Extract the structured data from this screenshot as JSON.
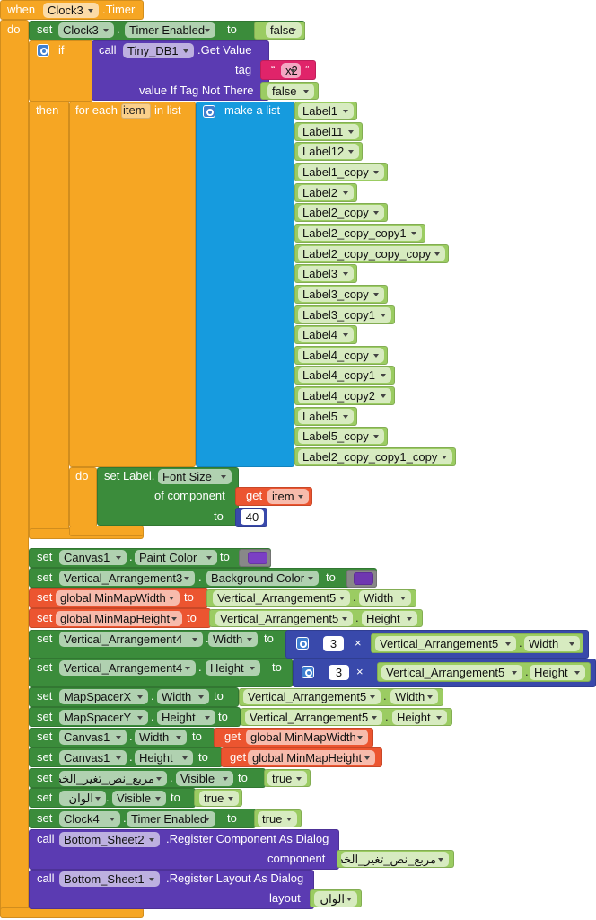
{
  "rows": [
    [
      "when",
      "Clock3",
      ".Timer"
    ],
    [
      "do",
      "set",
      "Clock3",
      ".",
      "Timer Enabled",
      "to",
      "false"
    ],
    [
      "if",
      "call",
      "Tiny_DB1",
      ".Get Value"
    ],
    [
      "tag",
      "“",
      "x2",
      "”"
    ],
    [
      "value If Tag Not There",
      "false"
    ],
    [
      "then",
      "for each",
      "item",
      "in list",
      "make a list",
      "Label1"
    ],
    [
      "Label11"
    ],
    [
      "Label12"
    ],
    [
      "Label1_copy"
    ],
    [
      "Label2"
    ],
    [
      "Label2_copy"
    ],
    [
      "Label2_copy_copy1"
    ],
    [
      "Label2_copy_copy_copy"
    ],
    [
      "Label3"
    ],
    [
      "Label3_copy"
    ],
    [
      "Label3_copy1"
    ],
    [
      "Label4"
    ],
    [
      "Label4_copy"
    ],
    [
      "Label4_copy1"
    ],
    [
      "Label4_copy2"
    ],
    [
      "Label5"
    ],
    [
      "Label5_copy"
    ],
    [
      "Label2_copy_copy1_copy"
    ],
    [
      "do",
      "set Label.",
      "Font Size"
    ],
    [
      "of component",
      "get",
      "item"
    ],
    [
      "to",
      "40"
    ],
    [
      "set",
      "Canvas1",
      ".",
      "Paint Color",
      "to"
    ],
    [
      "set",
      "Vertical_Arrangement3",
      ".",
      "Background Color",
      "to"
    ],
    [
      "set",
      "global MinMapWidth",
      "to",
      "Vertical_Arrangement5",
      ".",
      "Width"
    ],
    [
      "set",
      "global MinMapHeight",
      "to",
      "Vertical_Arrangement5",
      ".",
      "Height"
    ],
    [
      "set",
      "Vertical_Arrangement4",
      ".",
      "Width",
      "to",
      "3",
      "×",
      "Vertical_Arrangement5",
      ".",
      "Width"
    ],
    [
      "set",
      "Vertical_Arrangement4",
      ".",
      "Height",
      "to",
      "3",
      "×",
      "Vertical_Arrangement5",
      ".",
      "Height"
    ],
    [
      "set",
      "MapSpacerX",
      ".",
      "Width",
      "to",
      "Vertical_Arrangement5",
      ".",
      "Width"
    ],
    [
      "set",
      "MapSpacerY",
      ".",
      "Height",
      "to",
      "Vertical_Arrangement5",
      ".",
      "Height"
    ],
    [
      "set",
      "Canvas1",
      ".",
      "Width",
      "to",
      "get",
      "global MinMapWidth"
    ],
    [
      "set",
      "Canvas1",
      ".",
      "Height",
      "to",
      "get",
      "global MinMapHeight"
    ],
    [
      "set",
      "مربع_نص_تغير_الخط",
      ".",
      "Visible",
      "to",
      "true"
    ],
    [
      "set",
      "الوان",
      ".",
      "Visible",
      "to",
      "true"
    ],
    [
      "set",
      "Clock4",
      ".",
      "Timer Enabled",
      "to",
      "true"
    ],
    [
      "call",
      "Bottom_Sheet2",
      ".Register Component As Dialog"
    ],
    [
      "component",
      "مربع_نص_تغير_الخط"
    ],
    [
      "call",
      "Bottom_Sheet1",
      ".Register Layout As Dialog"
    ],
    [
      "layout",
      "الوان"
    ]
  ]
}
